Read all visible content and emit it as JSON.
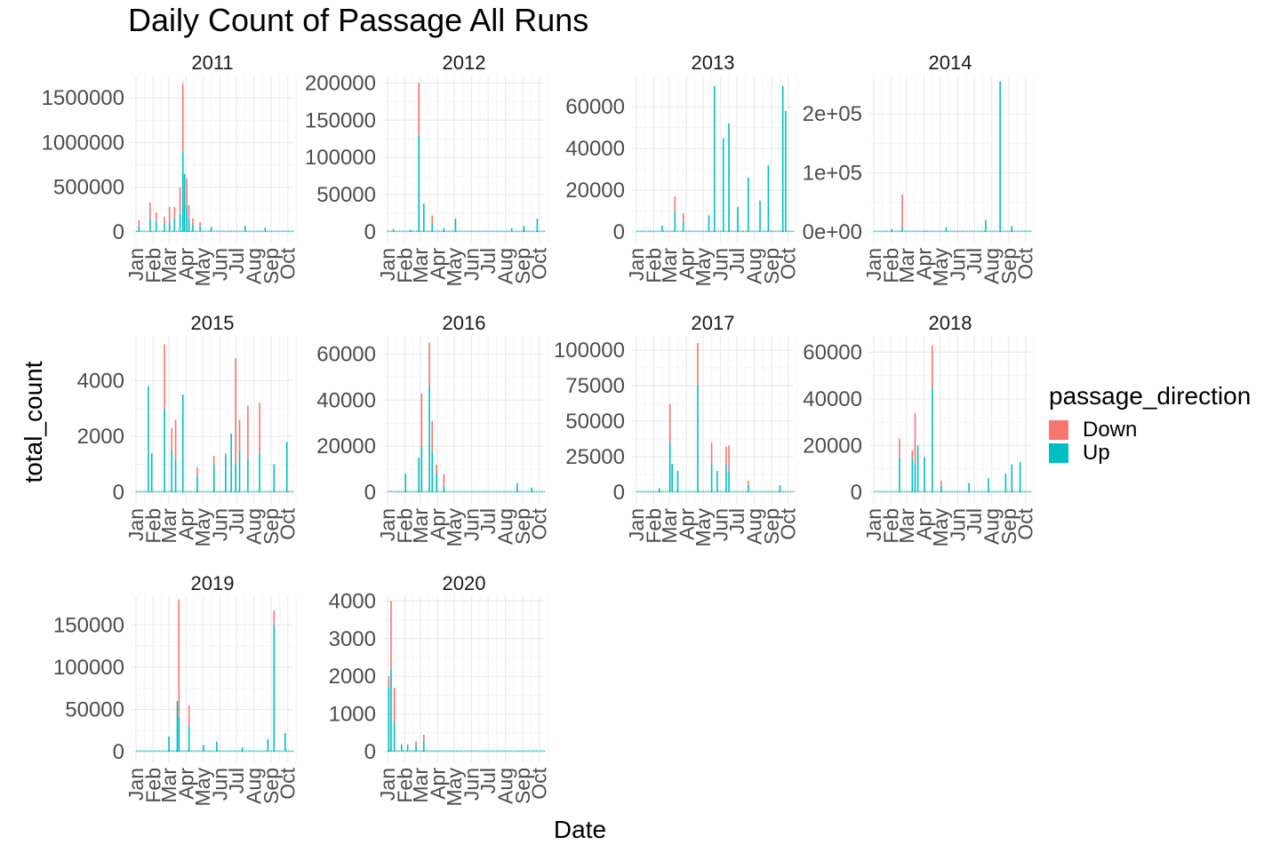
{
  "chart_data": {
    "type": "bar",
    "title": "Daily Count of Passage All Runs",
    "xlabel": "Date",
    "ylabel": "total_count",
    "legend": {
      "title": "passage_direction",
      "position": "right",
      "entries": [
        {
          "name": "Down",
          "color": "#F8766D"
        },
        {
          "name": "Up",
          "color": "#00BFC4"
        }
      ]
    },
    "facets": [
      {
        "year": "2011",
        "x_ticks": [
          "Jan",
          "Feb",
          "Mar",
          "Apr",
          "May",
          "Jun",
          "Jul",
          "Aug",
          "Sep",
          "Oct"
        ],
        "y_ticks": [
          "0",
          "500000",
          "1000000",
          "1500000"
        ],
        "y_max": 1750000,
        "spikes": [
          {
            "date": "2011-01-05",
            "up": 60000,
            "down": 70000
          },
          {
            "date": "2011-01-25",
            "up": 150000,
            "down": 180000
          },
          {
            "date": "2011-02-05",
            "up": 120000,
            "down": 100000
          },
          {
            "date": "2011-02-20",
            "up": 90000,
            "down": 80000
          },
          {
            "date": "2011-03-01",
            "up": 100000,
            "down": 180000
          },
          {
            "date": "2011-03-10",
            "up": 150000,
            "down": 130000
          },
          {
            "date": "2011-03-20",
            "up": 200000,
            "down": 300000
          },
          {
            "date": "2011-03-25",
            "up": 900000,
            "down": 760000
          },
          {
            "date": "2011-03-28",
            "up": 650000,
            "down": 0
          },
          {
            "date": "2011-04-01",
            "up": 300000,
            "down": 300000
          },
          {
            "date": "2011-04-05",
            "up": 150000,
            "down": 150000
          },
          {
            "date": "2011-04-12",
            "up": 80000,
            "down": 70000
          },
          {
            "date": "2011-04-25",
            "up": 60000,
            "down": 50000
          },
          {
            "date": "2011-05-15",
            "up": 40000,
            "down": 20000
          },
          {
            "date": "2011-07-15",
            "up": 60000,
            "down": 10000
          },
          {
            "date": "2011-08-20",
            "up": 40000,
            "down": 10000
          }
        ]
      },
      {
        "year": "2012",
        "x_ticks": [
          "Jan",
          "Feb",
          "Mar",
          "Apr",
          "May",
          "Jun",
          "Jul",
          "Aug",
          "Sep",
          "Oct"
        ],
        "y_ticks": [
          "0",
          "50000",
          "100000",
          "150000",
          "200000"
        ],
        "y_max": 210000,
        "spikes": [
          {
            "date": "2012-01-10",
            "up": 3000,
            "down": 1000
          },
          {
            "date": "2012-02-10",
            "up": 3000,
            "down": 0
          },
          {
            "date": "2012-02-25",
            "up": 130000,
            "down": 70000
          },
          {
            "date": "2012-03-05",
            "up": 38000,
            "down": 0
          },
          {
            "date": "2012-03-20",
            "up": 12000,
            "down": 10000
          },
          {
            "date": "2012-04-10",
            "up": 5000,
            "down": 0
          },
          {
            "date": "2012-05-01",
            "up": 18000,
            "down": 0
          },
          {
            "date": "2012-08-10",
            "up": 5000,
            "down": 0
          },
          {
            "date": "2012-09-01",
            "up": 8000,
            "down": 0
          },
          {
            "date": "2012-09-25",
            "up": 18000,
            "down": 0
          }
        ]
      },
      {
        "year": "2013",
        "x_ticks": [
          "Jan",
          "Feb",
          "Mar",
          "Apr",
          "May",
          "Jun",
          "Jul",
          "Aug",
          "Sep",
          "Oct"
        ],
        "y_ticks": [
          "0",
          "20000",
          "40000",
          "60000"
        ],
        "y_max": 75000,
        "spikes": [
          {
            "date": "2013-02-15",
            "up": 3000,
            "down": 0
          },
          {
            "date": "2013-03-10",
            "up": 10000,
            "down": 7000
          },
          {
            "date": "2013-03-25",
            "up": 5000,
            "down": 4000
          },
          {
            "date": "2013-05-10",
            "up": 8000,
            "down": 0
          },
          {
            "date": "2013-05-20",
            "up": 70000,
            "down": 0
          },
          {
            "date": "2013-06-05",
            "up": 45000,
            "down": 0
          },
          {
            "date": "2013-06-15",
            "up": 52000,
            "down": 0
          },
          {
            "date": "2013-07-01",
            "up": 12000,
            "down": 0
          },
          {
            "date": "2013-07-20",
            "up": 26000,
            "down": 0
          },
          {
            "date": "2013-08-10",
            "up": 15000,
            "down": 0
          },
          {
            "date": "2013-08-25",
            "up": 32000,
            "down": 0
          },
          {
            "date": "2013-09-20",
            "up": 70000,
            "down": 0
          },
          {
            "date": "2013-09-25",
            "up": 58000,
            "down": 0
          }
        ]
      },
      {
        "year": "2014",
        "x_ticks": [
          "Jan",
          "Feb",
          "Mar",
          "Apr",
          "May",
          "Jun",
          "Jul",
          "Aug",
          "Sep",
          "Oct"
        ],
        "y_ticks": [
          "0e+00",
          "1e+05",
          "2e+05"
        ],
        "y_max": 265000,
        "spikes": [
          {
            "date": "2014-02-01",
            "up": 5000,
            "down": 0
          },
          {
            "date": "2014-02-20",
            "up": 8000,
            "down": 55000
          },
          {
            "date": "2014-04-01",
            "up": 2000,
            "down": 0
          },
          {
            "date": "2014-05-10",
            "up": 8000,
            "down": 0
          },
          {
            "date": "2014-07-20",
            "up": 20000,
            "down": 0
          },
          {
            "date": "2014-08-15",
            "up": 255000,
            "down": 0
          },
          {
            "date": "2014-09-05",
            "up": 10000,
            "down": 0
          }
        ]
      },
      {
        "year": "2015",
        "x_ticks": [
          "Jan",
          "Feb",
          "Mar",
          "Apr",
          "May",
          "Jun",
          "Jul",
          "Aug",
          "Sep",
          "Oct"
        ],
        "y_ticks": [
          "0",
          "2000",
          "4000"
        ],
        "y_max": 5600,
        "spikes": [
          {
            "date": "2015-01-22",
            "up": 3800,
            "down": 0
          },
          {
            "date": "2015-01-28",
            "up": 1400,
            "down": 0
          },
          {
            "date": "2015-02-20",
            "up": 3000,
            "down": 2300
          },
          {
            "date": "2015-03-05",
            "up": 1500,
            "down": 800
          },
          {
            "date": "2015-03-12",
            "up": 1200,
            "down": 1400
          },
          {
            "date": "2015-03-25",
            "up": 3500,
            "down": 0
          },
          {
            "date": "2015-04-20",
            "up": 600,
            "down": 300
          },
          {
            "date": "2015-05-20",
            "up": 1000,
            "down": 300
          },
          {
            "date": "2015-06-10",
            "up": 1300,
            "down": 100
          },
          {
            "date": "2015-06-20",
            "up": 2100,
            "down": 0
          },
          {
            "date": "2015-06-28",
            "up": 1000,
            "down": 3800
          },
          {
            "date": "2015-07-05",
            "up": 1500,
            "down": 1100
          },
          {
            "date": "2015-07-20",
            "up": 1200,
            "down": 1900
          },
          {
            "date": "2015-08-10",
            "up": 1400,
            "down": 1800
          },
          {
            "date": "2015-09-05",
            "up": 1000,
            "down": 0
          },
          {
            "date": "2015-09-28",
            "up": 1800,
            "down": 0
          }
        ]
      },
      {
        "year": "2016",
        "x_ticks": [
          "Jan",
          "Feb",
          "Mar",
          "Apr",
          "May",
          "Jun",
          "Jul",
          "Aug",
          "Sep",
          "Oct"
        ],
        "y_ticks": [
          "0",
          "20000",
          "40000",
          "60000"
        ],
        "y_max": 68000,
        "spikes": [
          {
            "date": "2016-02-01",
            "up": 8000,
            "down": 0
          },
          {
            "date": "2016-02-25",
            "up": 15000,
            "down": 0
          },
          {
            "date": "2016-03-01",
            "up": 20000,
            "down": 23000
          },
          {
            "date": "2016-03-15",
            "up": 46000,
            "down": 19000
          },
          {
            "date": "2016-03-20",
            "up": 18000,
            "down": 13000
          },
          {
            "date": "2016-03-28",
            "up": 8000,
            "down": 4000
          },
          {
            "date": "2016-04-10",
            "up": 3000,
            "down": 5000
          },
          {
            "date": "2016-08-20",
            "up": 4000,
            "down": 0
          },
          {
            "date": "2016-09-15",
            "up": 2000,
            "down": 0
          }
        ]
      },
      {
        "year": "2017",
        "x_ticks": [
          "Jan",
          "Feb",
          "Mar",
          "Apr",
          "May",
          "Jun",
          "Jul",
          "Aug",
          "Sep",
          "Oct"
        ],
        "y_ticks": [
          "0",
          "25000",
          "50000",
          "75000",
          "100000"
        ],
        "y_max": 110000,
        "spikes": [
          {
            "date": "2017-02-10",
            "up": 3000,
            "down": 0
          },
          {
            "date": "2017-03-01",
            "up": 35000,
            "down": 27000
          },
          {
            "date": "2017-03-05",
            "up": 20000,
            "down": 0
          },
          {
            "date": "2017-03-15",
            "up": 15000,
            "down": 0
          },
          {
            "date": "2017-04-20",
            "up": 75000,
            "down": 30000
          },
          {
            "date": "2017-05-15",
            "up": 20000,
            "down": 15000
          },
          {
            "date": "2017-05-25",
            "up": 15000,
            "down": 0
          },
          {
            "date": "2017-06-10",
            "up": 20000,
            "down": 12000
          },
          {
            "date": "2017-06-15",
            "up": 15000,
            "down": 18000
          },
          {
            "date": "2017-07-20",
            "up": 5000,
            "down": 3000
          },
          {
            "date": "2017-09-15",
            "up": 5000,
            "down": 0
          }
        ]
      },
      {
        "year": "2018",
        "x_ticks": [
          "Jan",
          "Feb",
          "Mar",
          "Apr",
          "May",
          "Jun",
          "Jul",
          "Aug",
          "Sep",
          "Oct"
        ],
        "y_ticks": [
          "0",
          "20000",
          "40000",
          "60000"
        ],
        "y_max": 67000,
        "spikes": [
          {
            "date": "2018-02-15",
            "up": 15000,
            "down": 8000
          },
          {
            "date": "2018-03-10",
            "up": 15000,
            "down": 3000
          },
          {
            "date": "2018-03-15",
            "up": 12000,
            "down": 22000
          },
          {
            "date": "2018-03-20",
            "up": 20000,
            "down": 0
          },
          {
            "date": "2018-04-01",
            "up": 15000,
            "down": 0
          },
          {
            "date": "2018-04-15",
            "up": 45000,
            "down": 18000
          },
          {
            "date": "2018-05-01",
            "up": 3000,
            "down": 2000
          },
          {
            "date": "2018-06-20",
            "up": 4000,
            "down": 0
          },
          {
            "date": "2018-07-25",
            "up": 6000,
            "down": 0
          },
          {
            "date": "2018-08-25",
            "up": 8000,
            "down": 0
          },
          {
            "date": "2018-09-05",
            "up": 12000,
            "down": 0
          },
          {
            "date": "2018-09-20",
            "up": 13000,
            "down": 0
          }
        ]
      },
      {
        "year": "2019",
        "x_ticks": [
          "Jan",
          "Feb",
          "Mar",
          "Apr",
          "May",
          "Jun",
          "Jul",
          "Aug",
          "Sep",
          "Oct"
        ],
        "y_ticks": [
          "0",
          "50000",
          "100000",
          "150000"
        ],
        "y_max": 185000,
        "spikes": [
          {
            "date": "2019-02-28",
            "up": 18000,
            "down": 0
          },
          {
            "date": "2019-03-15",
            "up": 60000,
            "down": 0
          },
          {
            "date": "2019-03-18",
            "up": 40000,
            "down": 140000
          },
          {
            "date": "2019-04-05",
            "up": 30000,
            "down": 25000
          },
          {
            "date": "2019-05-01",
            "up": 8000,
            "down": 0
          },
          {
            "date": "2019-05-25",
            "up": 12000,
            "down": 0
          },
          {
            "date": "2019-07-10",
            "up": 5000,
            "down": 0
          },
          {
            "date": "2019-08-25",
            "up": 15000,
            "down": 0
          },
          {
            "date": "2019-09-05",
            "up": 150000,
            "down": 17000
          },
          {
            "date": "2019-09-25",
            "up": 22000,
            "down": 0
          }
        ]
      },
      {
        "year": "2020",
        "x_ticks": [
          "Jan",
          "Feb",
          "Mar",
          "Apr",
          "May",
          "Jun",
          "Jul",
          "Aug",
          "Sep",
          "Oct"
        ],
        "y_ticks": [
          "0",
          "1000",
          "2000",
          "3000",
          "4000"
        ],
        "y_max": 4150,
        "spikes": [
          {
            "date": "2020-01-02",
            "up": 1700,
            "down": 300
          },
          {
            "date": "2020-01-06",
            "up": 2200,
            "down": 1800
          },
          {
            "date": "2020-01-12",
            "up": 800,
            "down": 900
          },
          {
            "date": "2020-01-25",
            "up": 200,
            "down": 0
          },
          {
            "date": "2020-02-05",
            "up": 150,
            "down": 50
          },
          {
            "date": "2020-02-20",
            "up": 180,
            "down": 100
          },
          {
            "date": "2020-03-05",
            "up": 300,
            "down": 150
          }
        ]
      }
    ]
  }
}
